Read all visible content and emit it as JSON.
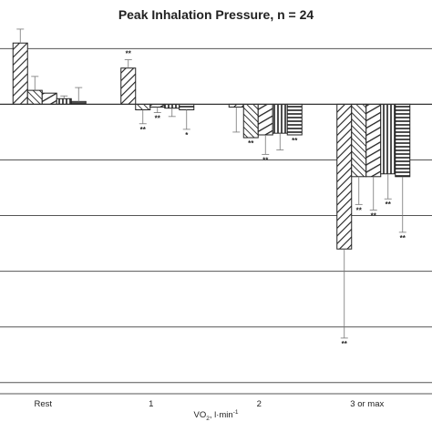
{
  "chart_data": {
    "type": "bar",
    "title": "Peak Inhalation Pressure, n = 24",
    "xlabel": {
      "main": "VO",
      "sub": "2",
      "sep": ", l·min",
      "sup": "-1"
    },
    "ylabel": "",
    "categories": [
      "Rest",
      "1",
      "2",
      "3 or max"
    ],
    "ylim": [
      -5.2,
      1.3
    ],
    "grid": true,
    "legend": "none",
    "series": [
      {
        "pattern": "diag-down",
        "values": [
          1.1,
          0.65,
          -0.05,
          -2.6
        ],
        "errors": [
          0.25,
          0.15,
          0.45,
          1.6
        ],
        "significance": [
          "",
          "**",
          "",
          "**"
        ]
      },
      {
        "pattern": "diag-up",
        "values": [
          0.25,
          -0.1,
          -0.6,
          -1.3
        ],
        "errors": [
          0.25,
          0.25,
          0.0,
          0.5
        ],
        "significance": [
          "",
          "**",
          "**",
          "**"
        ]
      },
      {
        "pattern": "diag-down-wide",
        "values": [
          0.2,
          -0.05,
          -0.55,
          -1.3
        ],
        "errors": [
          0.0,
          0.1,
          0.35,
          0.6
        ],
        "significance": [
          "",
          "**",
          "**",
          "**"
        ]
      },
      {
        "pattern": "vertical",
        "values": [
          0.1,
          -0.07,
          -0.52,
          -1.25
        ],
        "errors": [
          0.05,
          0.15,
          0.3,
          0.45
        ],
        "significance": [
          "",
          "",
          "",
          "**"
        ]
      },
      {
        "pattern": "horizontal",
        "values": [
          0.05,
          -0.1,
          -0.55,
          -1.3
        ],
        "errors": [
          0.25,
          0.35,
          0.0,
          1.0
        ],
        "significance": [
          "",
          "*",
          "**",
          "**"
        ]
      }
    ]
  }
}
